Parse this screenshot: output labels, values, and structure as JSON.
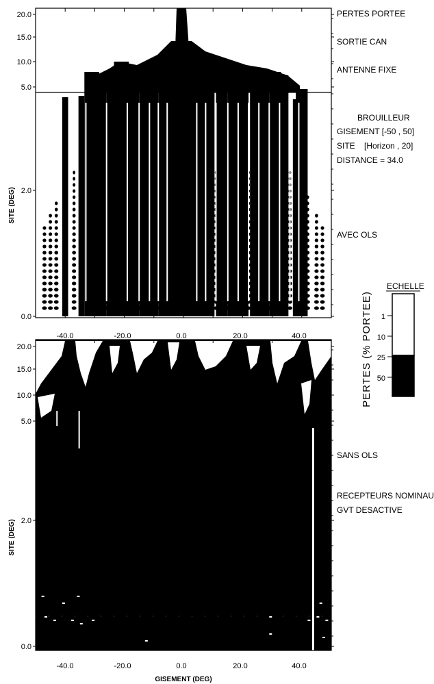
{
  "chart_data": [
    {
      "type": "heatmap",
      "panel": "top",
      "ylabel": "SITE (DEG)",
      "xlim": [
        -50,
        50
      ],
      "y_ticks_lower": [
        "0.0",
        "2.0"
      ],
      "y_ticks_upper": [
        "5.0",
        "10.0",
        "15.0",
        "20.0"
      ],
      "x_ticks": [
        "-40.0",
        "-20.0",
        "0.0",
        "20.0",
        "40.0"
      ],
      "annotations": {
        "pertes_portee": "PERTES PORTEE",
        "sortie_can": "SORTIE CAN",
        "antenne_fixe": "ANTENNE FIXE",
        "brouilleur": "BROUILLEUR",
        "gisement": "GISEMENT [-50 , 50]",
        "site": "SITE    [Horizon , 20]",
        "distance": "DISTANCE = 34.0",
        "avec_ols": "AVEC OLS"
      }
    },
    {
      "type": "heatmap",
      "panel": "bottom",
      "xlabel": "GISEMENT (DEG)",
      "ylabel": "SITE (DEG)",
      "xlim": [
        -50,
        50
      ],
      "y_ticks_lower": [
        "0.0",
        "2.0"
      ],
      "y_ticks_upper": [
        "5.0",
        "10.0",
        "15.0",
        "20.0"
      ],
      "x_ticks": [
        "-40.0",
        "-20.0",
        "0.0",
        "20.0",
        "40.0"
      ],
      "annotations": {
        "sans_ols": "SANS OLS",
        "recepteurs": "RECEPTEURS NOMINAUX",
        "gvt": "GVT DESACTIVE"
      }
    }
  ],
  "scale": {
    "title": "ECHELLE",
    "axis_label": "PERTES (% PORTEE)",
    "ticks": [
      "1",
      "10",
      "25",
      "50"
    ],
    "threshold": 25
  },
  "colors": {
    "fill": "#000000",
    "background": "#ffffff"
  }
}
